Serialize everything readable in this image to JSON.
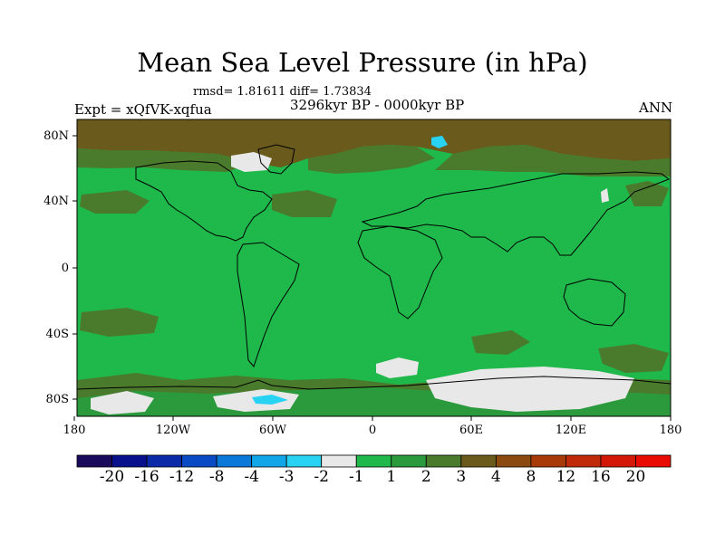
{
  "title": "Mean Sea Level Pressure (in hPa)",
  "stats": "rmsd= 1.81611 diff= 1.73834",
  "period": "3296kyr BP - 0000kyr BP",
  "experiment": "Expt = xQfVK-xqfua",
  "season": "ANN",
  "lat_labels": [
    "80N",
    "40N",
    "0",
    "40S",
    "80S"
  ],
  "lon_labels": [
    "180",
    "120W",
    "60W",
    "0",
    "60E",
    "120E",
    "180"
  ],
  "colorbar": {
    "labels": [
      "-20",
      "-16",
      "-12",
      "-8",
      "-4",
      "-3",
      "-2",
      "-1",
      "1",
      "2",
      "3",
      "4",
      "8",
      "12",
      "16",
      "20"
    ],
    "colors": [
      "#1a0a5c",
      "#08108c",
      "#0a2aa8",
      "#0a4ac4",
      "#0a78d8",
      "#10a6e8",
      "#28d2f2",
      "#e8e8e8",
      "#1fb84a",
      "#2b9a3c",
      "#4a7a2c",
      "#6a5a1c",
      "#8a4a10",
      "#a83a0a",
      "#c02a08",
      "#d41808",
      "#e80c04"
    ]
  },
  "map_colors": {
    "ocean_land_base": "#1fb84a",
    "positive_2_3": "#2b9a3c",
    "positive_3_4": "#4a7a2c",
    "positive_4_8": "#6a5a1c",
    "near_zero": "#e8e8e8",
    "negative": "#28d2f2"
  }
}
